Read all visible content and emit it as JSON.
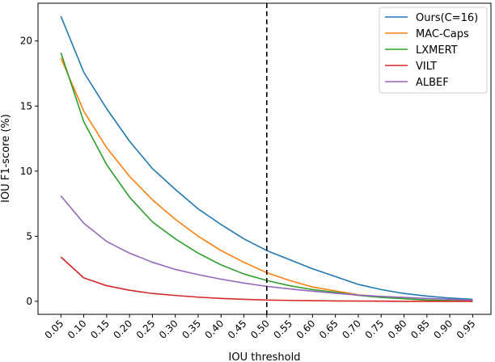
{
  "chart_data": {
    "type": "line",
    "xlabel": "IOU threshold",
    "ylabel": "IOU F1-score (%)",
    "x": [
      0.05,
      0.1,
      0.15,
      0.2,
      0.25,
      0.3,
      0.35,
      0.4,
      0.45,
      0.5,
      0.55,
      0.6,
      0.65,
      0.7,
      0.75,
      0.8,
      0.85,
      0.9,
      0.95
    ],
    "x_tick_labels": [
      "0.05",
      "0.10",
      "0.15",
      "0.20",
      "0.25",
      "0.30",
      "0.35",
      "0.40",
      "0.45",
      "0.50",
      "0.55",
      "0.60",
      "0.65",
      "0.70",
      "0.75",
      "0.80",
      "0.85",
      "0.90",
      "0.95"
    ],
    "y_ticks": [
      0,
      5,
      10,
      15,
      20
    ],
    "y_tick_labels": [
      "0",
      "5",
      "10",
      "15",
      "20"
    ],
    "xlim": [
      0.0,
      0.99
    ],
    "ylim": [
      -1.0,
      22.9
    ],
    "vline": {
      "x": 0.5,
      "style": "dashed",
      "color": "#000000"
    },
    "legend_position": "top-right",
    "grid": false,
    "series": [
      {
        "name": "Ours(C=16)",
        "color": "#1f77b4",
        "values": [
          21.9,
          17.6,
          14.8,
          12.3,
          10.2,
          8.6,
          7.1,
          5.9,
          4.8,
          3.9,
          3.2,
          2.5,
          1.9,
          1.3,
          0.9,
          0.6,
          0.4,
          0.25,
          0.15
        ]
      },
      {
        "name": "MAC-Caps",
        "color": "#ff7f0e",
        "values": [
          18.7,
          14.6,
          11.8,
          9.6,
          7.8,
          6.3,
          5.0,
          3.9,
          3.0,
          2.2,
          1.6,
          1.1,
          0.8,
          0.5,
          0.35,
          0.2,
          0.1,
          0.05,
          0.05
        ]
      },
      {
        "name": "LXMERT",
        "color": "#2ca02c",
        "values": [
          19.1,
          13.8,
          10.5,
          8.0,
          6.1,
          4.8,
          3.7,
          2.8,
          2.1,
          1.6,
          1.2,
          0.9,
          0.7,
          0.45,
          0.3,
          0.2,
          0.1,
          0.05,
          0.0
        ]
      },
      {
        "name": "VILT",
        "color": "#d62728",
        "values": [
          3.4,
          1.8,
          1.2,
          0.85,
          0.6,
          0.45,
          0.32,
          0.22,
          0.15,
          0.1,
          0.07,
          0.05,
          0.03,
          0.02,
          0.01,
          0.0,
          0.0,
          0.0,
          0.0
        ]
      },
      {
        "name": "ALBEF",
        "color": "#9467bd",
        "values": [
          8.1,
          6.0,
          4.6,
          3.7,
          3.0,
          2.45,
          2.05,
          1.7,
          1.4,
          1.15,
          0.95,
          0.78,
          0.62,
          0.48,
          0.38,
          0.3,
          0.22,
          0.16,
          0.1
        ]
      }
    ]
  }
}
